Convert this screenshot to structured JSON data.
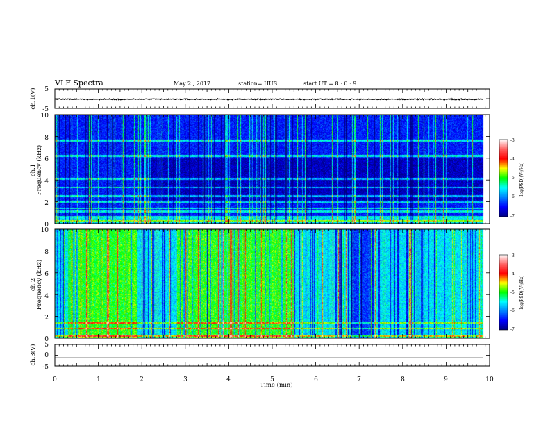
{
  "header": {
    "title": "VLF Spectra",
    "date": "May 2  , 2017",
    "station": "station= HUS",
    "start": "start  UT =   8  : 0  : 9"
  },
  "colorbar": {
    "label": "log(PSD)(V²/Hz)",
    "ticks": [
      "-3",
      "-4",
      "-5",
      "-6",
      "-7"
    ],
    "colors": [
      "#000080",
      "#0000ff",
      "#0080ff",
      "#00ffff",
      "#00ff00",
      "#ffff00",
      "#ff0000",
      "#ff6060",
      "#ffffff"
    ]
  },
  "chart_data": [
    {
      "type": "line",
      "panel": "ch1-voltage",
      "ylabel": "ch.1(V)",
      "xlim": [
        0,
        10
      ],
      "ylim": [
        -5,
        5
      ],
      "yticks": [
        "5",
        "-5"
      ],
      "mean": -0.3,
      "noise": 0.35,
      "x_end": 9.85
    },
    {
      "type": "heatmap",
      "panel": "ch1-spectrogram",
      "ylabel": "ch.1",
      "ylabel2": "Frequency (kHz)",
      "xlim": [
        0,
        10
      ],
      "ylim": [
        0,
        10
      ],
      "yticks": [
        "0",
        "2",
        "4",
        "6",
        "8",
        "10"
      ],
      "zlim": [
        -7,
        -3
      ],
      "background_level": -6.4,
      "bands_khz": [
        0.25,
        0.6,
        1.1,
        1.4,
        2.0,
        2.5,
        3.3,
        4.1,
        6.2,
        7.6
      ],
      "dark_region_khz": [
        2.0,
        6.0
      ],
      "dark_region_start_min": 2.0,
      "x_end": 9.85
    },
    {
      "type": "heatmap",
      "panel": "ch2-spectrogram",
      "ylabel": "ch.2",
      "ylabel2": "Frequency (kHz)",
      "xlim": [
        0,
        10
      ],
      "ylim": [
        0,
        10
      ],
      "yticks": [
        "0",
        "2",
        "4",
        "6",
        "8",
        "10"
      ],
      "zlim": [
        -7,
        -3
      ],
      "background_level": -5.6,
      "bright_intervals_min": [
        [
          0.3,
          1.9
        ],
        [
          2.8,
          5.5
        ]
      ],
      "dark_interval_min": [
        6.8,
        7.3
      ],
      "bands_khz": [
        0.2,
        0.9,
        1.4
      ],
      "x_end": 9.85
    },
    {
      "type": "line",
      "panel": "ch3-voltage",
      "ylabel": "ch.3(V)",
      "xlim": [
        0,
        10
      ],
      "ylim": [
        -5,
        5
      ],
      "yticks": [
        "5",
        "0",
        "-5"
      ],
      "mean": -1.2,
      "noise": 0,
      "x_end": 9.85
    }
  ],
  "xaxis": {
    "label": "Time  (min)",
    "ticks": [
      "0",
      "1",
      "2",
      "3",
      "4",
      "5",
      "6",
      "7",
      "8",
      "9",
      "10"
    ]
  }
}
